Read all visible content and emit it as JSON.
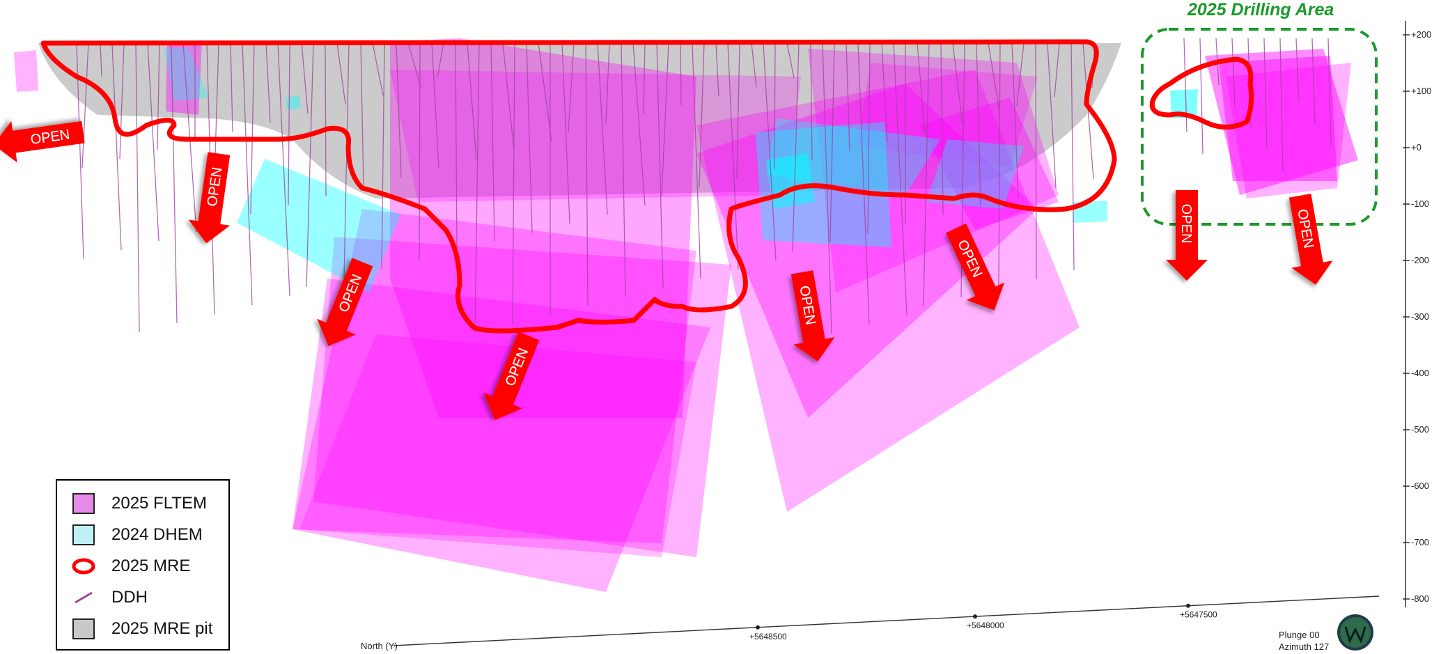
{
  "drilling_area_title": "2025 Drilling Area",
  "legend": [
    {
      "key": "fltem",
      "label": "2025 FLTEM",
      "color": "#e58ae6"
    },
    {
      "key": "dhem",
      "label": "2024 DHEM",
      "color": "#bff0f3"
    },
    {
      "key": "mre",
      "label": "2025 MRE",
      "color": "#ff0000"
    },
    {
      "key": "ddh",
      "label": "DDH",
      "color": "#a046a0"
    },
    {
      "key": "pit",
      "label": "2025 MRE pit",
      "color": "#c8c8c8"
    }
  ],
  "open_label": "OPEN",
  "elevation_ticks": [
    "+200",
    "+100",
    "+0",
    "-100",
    "-200",
    "-300",
    "-400",
    "-500",
    "-600",
    "-700",
    "-800"
  ],
  "north_axis": {
    "label": "North (Y)",
    "ticks": [
      "+5648500",
      "+5648000",
      "+5647500"
    ]
  },
  "view_info": {
    "plunge": "Plunge 00",
    "azimuth": "Azimuth 127"
  },
  "colors": {
    "fltem": "#ff00ff",
    "dhem": "#00ffff",
    "mre_outline": "#ff0000",
    "drilling_area_box": "#1a9a2a",
    "pit": "#c0c0c0"
  }
}
